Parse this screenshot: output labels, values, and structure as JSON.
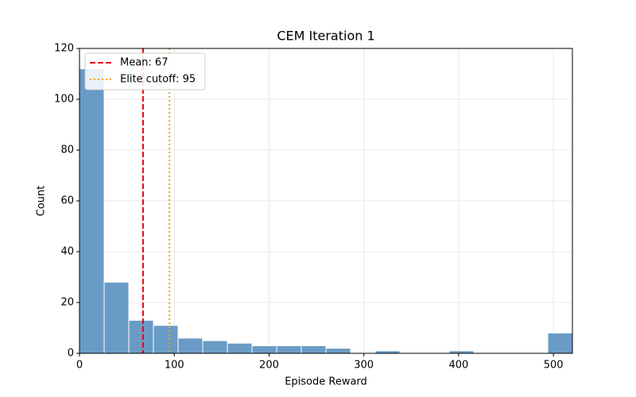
{
  "chart_data": {
    "type": "histogram",
    "title": "CEM Iteration 1",
    "xlabel": "Episode Reward",
    "ylabel": "Count",
    "bins": [
      0,
      26,
      52,
      78,
      104,
      130,
      156,
      182,
      208,
      234,
      260,
      286,
      312,
      338,
      364,
      390,
      416,
      442,
      468,
      494,
      520
    ],
    "counts": [
      112,
      28,
      13,
      11,
      6,
      5,
      4,
      3,
      3,
      3,
      2,
      0,
      1,
      0,
      0,
      1,
      0,
      0,
      0,
      8
    ],
    "color": "#6a9bc6",
    "xlim": [
      0,
      520
    ],
    "xticks": [
      0,
      100,
      200,
      300,
      400,
      500
    ],
    "ylim": [
      0,
      120
    ],
    "yticks": [
      0,
      20,
      40,
      60,
      80,
      100,
      120
    ],
    "grid": true,
    "legend": "upper left",
    "vlines": [
      {
        "name": "Mean: 67",
        "value": 67,
        "color": "#e8000b",
        "style": "dashed"
      },
      {
        "name": "Elite cutoff: 95",
        "value": 95,
        "color": "#f5a300",
        "style": "dotted"
      }
    ]
  }
}
